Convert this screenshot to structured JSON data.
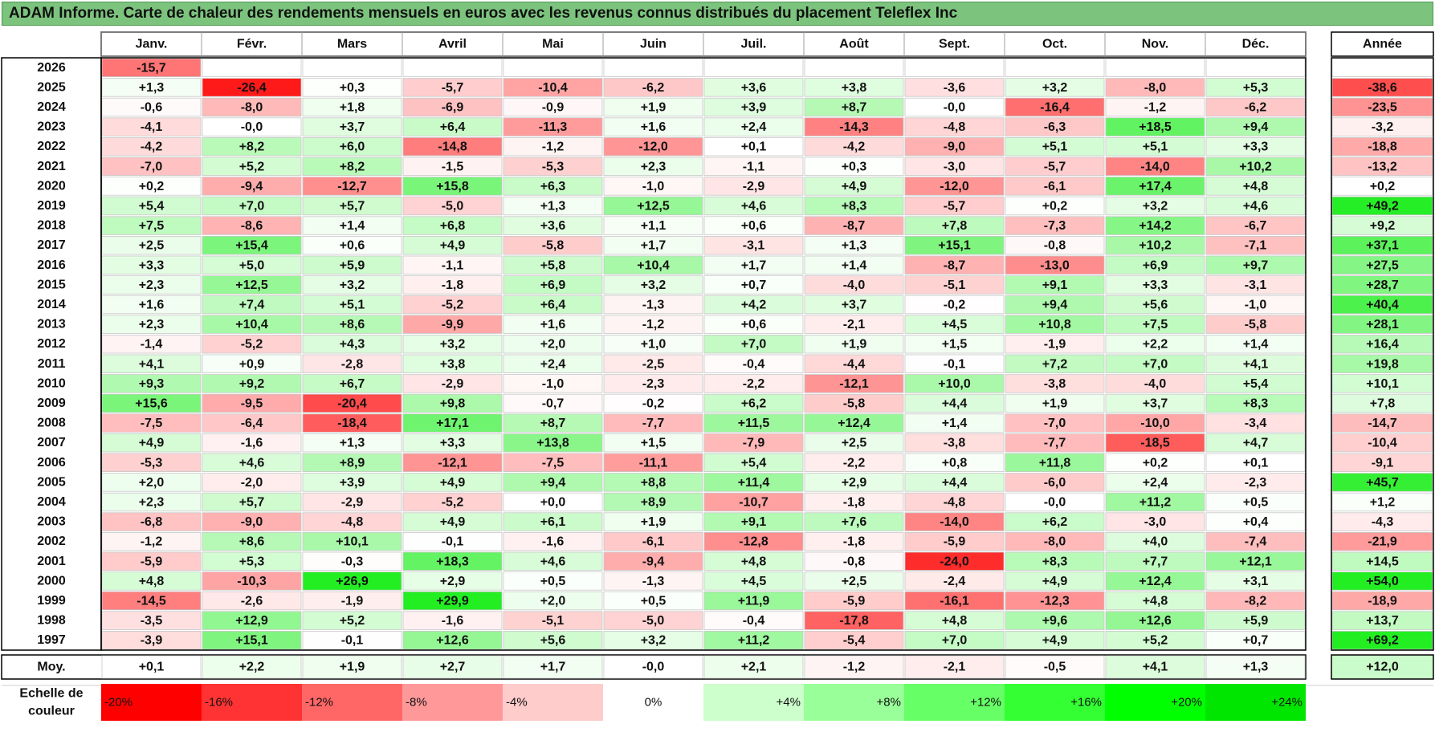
{
  "title": "ADAM Informe. Carte de chaleur des rendements mensuels en euros avec les revenus connus distribués du placement Teleflex Inc",
  "chart_data": {
    "type": "heatmap",
    "title": "ADAM Informe. Carte de chaleur des rendements mensuels en euros avec les revenus connus distribués du placement Teleflex Inc",
    "months": [
      "Janv.",
      "Févr.",
      "Mars",
      "Avril",
      "Mai",
      "Juin",
      "Juil.",
      "Août",
      "Sept.",
      "Oct.",
      "Nov.",
      "Déc."
    ],
    "year_header": "Année",
    "rows": [
      {
        "year": "2026",
        "values": [
          "-15,7",
          null,
          null,
          null,
          null,
          null,
          null,
          null,
          null,
          null,
          null,
          null
        ],
        "annual": null
      },
      {
        "year": "2025",
        "values": [
          "+1,3",
          "-26,4",
          "+0,3",
          "-5,7",
          "-10,4",
          "-6,2",
          "+3,6",
          "+3,8",
          "-3,6",
          "+3,2",
          "-8,0",
          "+5,3"
        ],
        "annual": "-38,6"
      },
      {
        "year": "2024",
        "values": [
          "-0,6",
          "-8,0",
          "+1,8",
          "-6,9",
          "-0,9",
          "+1,9",
          "+3,9",
          "+8,7",
          "-0,0",
          "-16,4",
          "-1,2",
          "-6,2"
        ],
        "annual": "-23,5"
      },
      {
        "year": "2023",
        "values": [
          "-4,1",
          "-0,0",
          "+3,7",
          "+6,4",
          "-11,3",
          "+1,6",
          "+2,4",
          "-14,3",
          "-4,8",
          "-6,3",
          "+18,5",
          "+9,4"
        ],
        "annual": "-3,2"
      },
      {
        "year": "2022",
        "values": [
          "-4,2",
          "+8,2",
          "+6,0",
          "-14,8",
          "-1,2",
          "-12,0",
          "+0,1",
          "-4,2",
          "-9,0",
          "+5,1",
          "+5,1",
          "+3,3"
        ],
        "annual": "-18,8"
      },
      {
        "year": "2021",
        "values": [
          "-7,0",
          "+5,2",
          "+8,2",
          "-1,5",
          "-5,3",
          "+2,3",
          "-1,1",
          "+0,3",
          "-3,0",
          "-5,7",
          "-14,0",
          "+10,2"
        ],
        "annual": "-13,2"
      },
      {
        "year": "2020",
        "values": [
          "+0,2",
          "-9,4",
          "-12,7",
          "+15,8",
          "+6,3",
          "-1,0",
          "-2,9",
          "+4,9",
          "-12,0",
          "-6,1",
          "+17,4",
          "+4,8"
        ],
        "annual": "+0,2"
      },
      {
        "year": "2019",
        "values": [
          "+5,4",
          "+7,0",
          "+5,7",
          "-5,0",
          "+1,3",
          "+12,5",
          "+4,6",
          "+8,3",
          "-5,7",
          "+0,2",
          "+3,2",
          "+4,6"
        ],
        "annual": "+49,2"
      },
      {
        "year": "2018",
        "values": [
          "+7,5",
          "-8,6",
          "+1,4",
          "+6,8",
          "+3,6",
          "+1,1",
          "+0,6",
          "-8,7",
          "+7,8",
          "-7,3",
          "+14,2",
          "-6,7"
        ],
        "annual": "+9,2"
      },
      {
        "year": "2017",
        "values": [
          "+2,5",
          "+15,4",
          "+0,6",
          "+4,9",
          "-5,8",
          "+1,7",
          "-3,1",
          "+1,3",
          "+15,1",
          "-0,8",
          "+10,2",
          "-7,1"
        ],
        "annual": "+37,1"
      },
      {
        "year": "2016",
        "values": [
          "+3,3",
          "+5,0",
          "+5,9",
          "-1,1",
          "+5,8",
          "+10,4",
          "+1,7",
          "+1,4",
          "-8,7",
          "-13,0",
          "+6,9",
          "+9,7"
        ],
        "annual": "+27,5"
      },
      {
        "year": "2015",
        "values": [
          "+2,3",
          "+12,5",
          "+3,2",
          "-1,8",
          "+6,9",
          "+3,2",
          "+0,7",
          "-4,0",
          "-5,1",
          "+9,1",
          "+3,3",
          "-3,1"
        ],
        "annual": "+28,7"
      },
      {
        "year": "2014",
        "values": [
          "+1,6",
          "+7,4",
          "+5,1",
          "-5,2",
          "+6,4",
          "-1,3",
          "+4,2",
          "+3,7",
          "-0,2",
          "+9,4",
          "+5,6",
          "-1,0"
        ],
        "annual": "+40,4"
      },
      {
        "year": "2013",
        "values": [
          "+2,3",
          "+10,4",
          "+8,6",
          "-9,9",
          "+1,6",
          "-1,2",
          "+0,6",
          "-2,1",
          "+4,5",
          "+10,8",
          "+7,5",
          "-5,8"
        ],
        "annual": "+28,1"
      },
      {
        "year": "2012",
        "values": [
          "-1,4",
          "-5,2",
          "+4,3",
          "+3,2",
          "+2,0",
          "+1,0",
          "+7,0",
          "+1,9",
          "+1,5",
          "-1,9",
          "+2,2",
          "+1,4"
        ],
        "annual": "+16,4"
      },
      {
        "year": "2011",
        "values": [
          "+4,1",
          "+0,9",
          "-2,8",
          "+3,8",
          "+2,4",
          "-2,5",
          "-0,4",
          "-4,4",
          "-0,1",
          "+7,2",
          "+7,0",
          "+4,1"
        ],
        "annual": "+19,8"
      },
      {
        "year": "2010",
        "values": [
          "+9,3",
          "+9,2",
          "+6,7",
          "-2,9",
          "-1,0",
          "-2,3",
          "-2,2",
          "-12,1",
          "+10,0",
          "-3,8",
          "-4,0",
          "+5,4"
        ],
        "annual": "+10,1"
      },
      {
        "year": "2009",
        "values": [
          "+15,6",
          "-9,5",
          "-20,4",
          "+9,8",
          "-0,7",
          "-0,2",
          "+6,2",
          "-5,8",
          "+4,4",
          "+1,9",
          "+3,7",
          "+8,3"
        ],
        "annual": "+7,8"
      },
      {
        "year": "2008",
        "values": [
          "-7,5",
          "-6,4",
          "-18,4",
          "+17,1",
          "+8,7",
          "-7,7",
          "+11,5",
          "+12,4",
          "+1,4",
          "-7,0",
          "-10,0",
          "-3,4"
        ],
        "annual": "-14,7"
      },
      {
        "year": "2007",
        "values": [
          "+4,9",
          "-1,6",
          "+1,3",
          "+3,3",
          "+13,8",
          "+1,5",
          "-7,9",
          "+2,5",
          "-3,8",
          "-7,7",
          "-18,5",
          "+4,7"
        ],
        "annual": "-10,4"
      },
      {
        "year": "2006",
        "values": [
          "-5,3",
          "+4,6",
          "+8,9",
          "-12,1",
          "-7,5",
          "-11,1",
          "+5,4",
          "-2,2",
          "+0,8",
          "+11,8",
          "+0,2",
          "+0,1"
        ],
        "annual": "-9,1"
      },
      {
        "year": "2005",
        "values": [
          "+2,0",
          "-2,0",
          "+3,9",
          "+4,9",
          "+9,4",
          "+8,8",
          "+11,4",
          "+2,9",
          "+4,4",
          "-6,0",
          "+2,4",
          "-2,3"
        ],
        "annual": "+45,7"
      },
      {
        "year": "2004",
        "values": [
          "+2,3",
          "+5,7",
          "-2,9",
          "-5,2",
          "+0,0",
          "+8,9",
          "-10,7",
          "-1,8",
          "-4,8",
          "-0,0",
          "+11,2",
          "+0,5"
        ],
        "annual": "+1,2"
      },
      {
        "year": "2003",
        "values": [
          "-6,8",
          "-9,0",
          "-4,8",
          "+4,9",
          "+6,1",
          "+1,9",
          "+9,1",
          "+7,6",
          "-14,0",
          "+6,2",
          "-3,0",
          "+0,4"
        ],
        "annual": "-4,3"
      },
      {
        "year": "2002",
        "values": [
          "-1,2",
          "+8,6",
          "+10,1",
          "-0,1",
          "-1,6",
          "-6,1",
          "-12,8",
          "-1,8",
          "-5,9",
          "-8,0",
          "+4,0",
          "-7,4"
        ],
        "annual": "-21,9"
      },
      {
        "year": "2001",
        "values": [
          "-5,9",
          "+5,3",
          "-0,3",
          "+18,3",
          "+4,6",
          "-9,4",
          "+4,8",
          "-0,8",
          "-24,0",
          "+8,3",
          "+7,7",
          "+12,1"
        ],
        "annual": "+14,5"
      },
      {
        "year": "2000",
        "values": [
          "+4,8",
          "-10,3",
          "+26,9",
          "+2,9",
          "+0,5",
          "-1,3",
          "+4,5",
          "+2,5",
          "-2,4",
          "+4,9",
          "+12,4",
          "+3,1"
        ],
        "annual": "+54,0"
      },
      {
        "year": "1999",
        "values": [
          "-14,5",
          "-2,6",
          "-1,9",
          "+29,9",
          "+2,0",
          "+0,5",
          "+11,9",
          "-5,9",
          "-16,1",
          "-12,3",
          "+4,8",
          "-8,2"
        ],
        "annual": "-18,9"
      },
      {
        "year": "1998",
        "values": [
          "-3,5",
          "+12,9",
          "+5,2",
          "-1,6",
          "-5,1",
          "-5,0",
          "-0,4",
          "-17,8",
          "+4,8",
          "+9,6",
          "+12,6",
          "+5,9"
        ],
        "annual": "+13,7"
      },
      {
        "year": "1997",
        "values": [
          "-3,9",
          "+15,1",
          "-0,1",
          "+12,6",
          "+5,6",
          "+3,2",
          "+11,2",
          "-5,4",
          "+7,0",
          "+4,9",
          "+5,2",
          "+0,7"
        ],
        "annual": "+69,2"
      }
    ],
    "average": {
      "label": "Moy.",
      "values": [
        "+0,1",
        "+2,2",
        "+1,9",
        "+2,7",
        "+1,7",
        "-0,0",
        "+2,1",
        "-1,2",
        "-2,1",
        "-0,5",
        "+4,1",
        "+1,3"
      ],
      "annual": "+12,0"
    },
    "scale": {
      "label_line1": "Echelle de",
      "label_line2": "couleur",
      "steps": [
        {
          "label": "-20%",
          "value": -20,
          "color": "#ff0000"
        },
        {
          "label": "-16%",
          "value": -16,
          "color": "#ff3333"
        },
        {
          "label": "-12%",
          "value": -12,
          "color": "#ff6666"
        },
        {
          "label": "-8%",
          "value": -8,
          "color": "#ff9999"
        },
        {
          "label": "-4%",
          "value": -4,
          "color": "#ffcccc"
        },
        {
          "label": "0%",
          "value": 0,
          "color": "#ffffff"
        },
        {
          "label": "+4%",
          "value": 4,
          "color": "#ccffcc"
        },
        {
          "label": "+8%",
          "value": 8,
          "color": "#99ff99"
        },
        {
          "label": "+12%",
          "value": 12,
          "color": "#66ff66"
        },
        {
          "label": "+16%",
          "value": 16,
          "color": "#33ff33"
        },
        {
          "label": "+20%",
          "value": 20,
          "color": "#00ff00"
        },
        {
          "label": "+24%",
          "value": 24,
          "color": "#00e600"
        }
      ]
    },
    "colors": {
      "negative_max": "#ff0000",
      "positive_max": "#00ff00",
      "neutral": "#ffffff",
      "title_bg": "#7cc47e"
    }
  }
}
